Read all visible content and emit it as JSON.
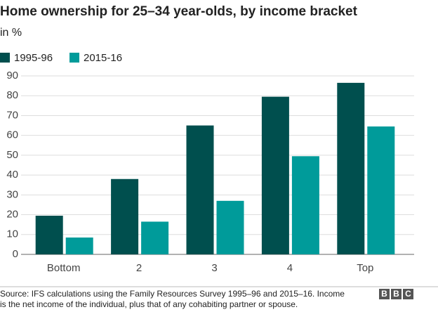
{
  "chart_data": {
    "type": "grouped-bar",
    "title": "Home ownership for 25–34 year-olds, by income bracket",
    "subtitle": "in %",
    "categories": [
      "Bottom",
      "2",
      "3",
      "4",
      "Top"
    ],
    "series": [
      {
        "name": "1995-96",
        "color": "#004f4e",
        "values": [
          19.5,
          38,
          65,
          79.5,
          86.5
        ]
      },
      {
        "name": "2015-16",
        "color": "#009b9a",
        "values": [
          8.5,
          16.5,
          27,
          49.5,
          64.5
        ]
      }
    ],
    "ylim": [
      0,
      90
    ],
    "yticks": [
      0,
      10,
      20,
      30,
      40,
      50,
      60,
      70,
      80,
      90
    ],
    "grid": true,
    "source": [
      "Source: IFS calculations using the Family Resources Survey 1995–96 and 2015–16. Income",
      "is the net income of the individual, plus that of any cohabiting partner or spouse."
    ],
    "logo": [
      "B",
      "B",
      "C"
    ]
  }
}
